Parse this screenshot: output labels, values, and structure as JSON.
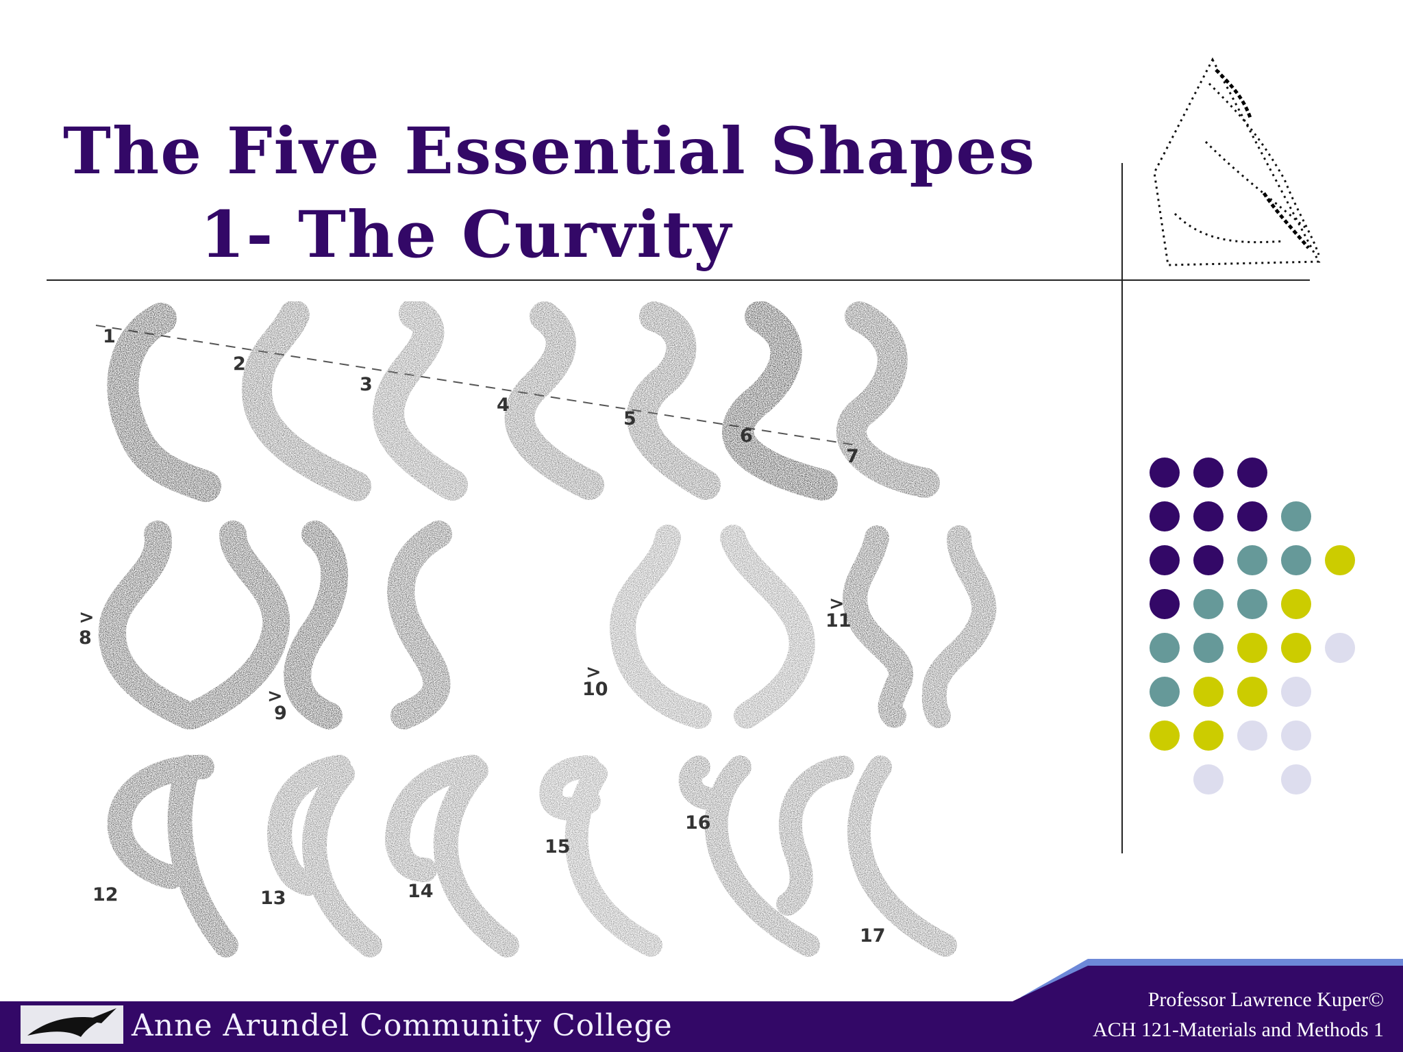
{
  "slide": {
    "title_line1": "The Five Essential Shapes",
    "title_line2": "1- The Curvity"
  },
  "figure": {
    "labels": [
      "1",
      "2",
      "3",
      "4",
      "5",
      "6",
      "7",
      "8",
      "9",
      "10",
      "11",
      "12",
      "13",
      "14",
      "15",
      "16",
      "17"
    ]
  },
  "footer": {
    "college_name": "Anne Arundel Community College",
    "professor": "Professor Lawrence Kuper©",
    "course": "ACH 121-Materials and Methods 1"
  },
  "colors": {
    "title": "#330867",
    "purple": "#330867",
    "teal": "#669999",
    "lime": "#CCCC00",
    "lavender": "#DDDDEE",
    "footer_band": "#330867",
    "footer_accent": "#6D88D8"
  },
  "dot_grid": [
    [
      "purple",
      "purple",
      "purple",
      null,
      null
    ],
    [
      "purple",
      "purple",
      "purple",
      "teal",
      null
    ],
    [
      "purple",
      "purple",
      "teal",
      "teal",
      "lime"
    ],
    [
      "purple",
      "teal",
      "teal",
      "lime",
      null
    ],
    [
      "teal",
      "teal",
      "lime",
      "lime",
      "lavender"
    ],
    [
      "teal",
      "lime",
      "lime",
      "lavender",
      null
    ],
    [
      "lime",
      "lime",
      "lavender",
      "lavender",
      null
    ],
    [
      null,
      "lavender",
      null,
      "lavender",
      null
    ]
  ]
}
